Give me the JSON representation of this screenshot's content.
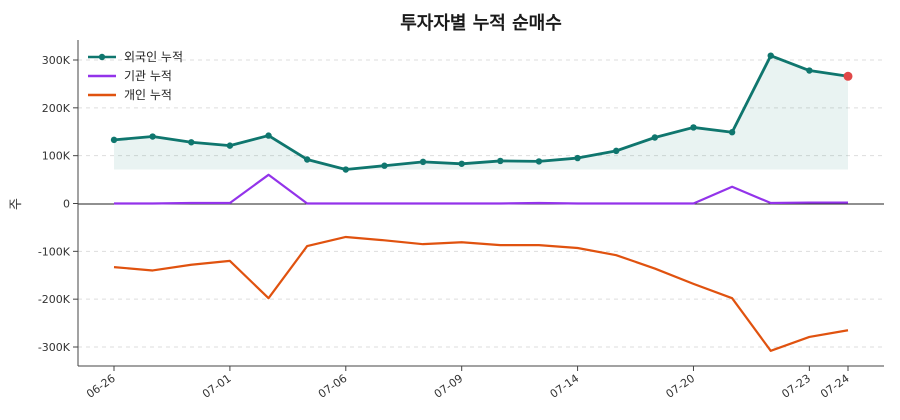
{
  "chart_data": {
    "type": "line",
    "title": "투자자별 누적 순매수",
    "ylabel": "주",
    "ylim": [
      -340000,
      340000
    ],
    "yticks": [
      300000,
      200000,
      100000,
      0,
      -100000,
      -200000,
      -300000
    ],
    "ytick_labels": [
      "300K",
      "200K",
      "100K",
      "0",
      "-100K",
      "-200K",
      "-300K"
    ],
    "xtick_labels": [
      "06-26",
      "07-01",
      "07-06",
      "07-09",
      "07-14",
      "07-20",
      "07-23",
      "07-24"
    ],
    "xtick_indices": [
      0,
      3,
      6,
      9,
      12,
      15,
      18,
      19
    ],
    "grid": "horizontal dashed",
    "legend_position": "top-left",
    "series": [
      {
        "name": "외국인 누적",
        "color": "#0f766e",
        "marker": "circle",
        "values": [
          133000,
          140000,
          128000,
          121000,
          142000,
          92000,
          71000,
          79000,
          87000,
          83000,
          89000,
          88000,
          95000,
          110000,
          138000,
          159000,
          149000,
          309000,
          278000,
          266000
        ]
      },
      {
        "name": "기관 누적",
        "color": "#9333ea",
        "values": [
          0,
          0,
          1000,
          1000,
          60000,
          0,
          0,
          0,
          0,
          0,
          0,
          1000,
          0,
          0,
          0,
          0,
          35000,
          1000,
          2000,
          2000
        ]
      },
      {
        "name": "개인 누적",
        "color": "#e0520f",
        "values": [
          -133000,
          -140000,
          -128000,
          -120000,
          -198000,
          -89000,
          -70000,
          -77000,
          -85000,
          -81000,
          -87000,
          -87000,
          -93000,
          -108000,
          -136000,
          -168000,
          -198000,
          -308000,
          -279000,
          -265000
        ]
      }
    ],
    "last_point_color": "#e04848"
  }
}
